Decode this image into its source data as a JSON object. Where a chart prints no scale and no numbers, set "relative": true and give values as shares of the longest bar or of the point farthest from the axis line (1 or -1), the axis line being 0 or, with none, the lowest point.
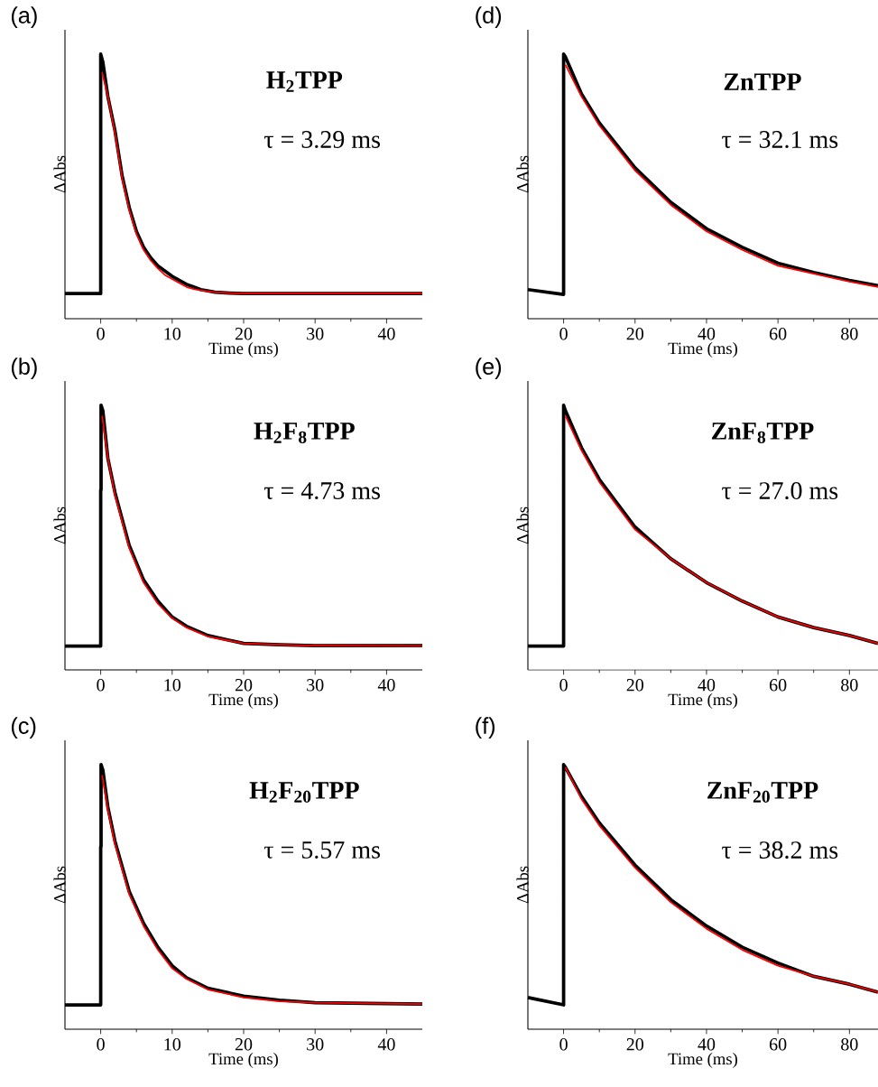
{
  "chart_data": [
    {
      "type": "line",
      "title": "(a)",
      "xlabel": "Time (ms)",
      "ylabel": "ΔAbs",
      "annotations": [
        "H$_{2}$TPP",
        "τ = 3.29 ms"
      ],
      "relative": true,
      "tick_labels": "x",
      "xlim": [
        -5,
        45
      ],
      "xticks": [
        0,
        10,
        20,
        30,
        40
      ],
      "series": [
        {
          "color": "#000000",
          "x": [
            -5,
            0,
            0,
            0.3,
            1,
            2,
            3,
            4,
            5,
            6,
            7,
            8,
            9,
            10,
            11,
            12,
            13,
            14,
            15,
            16,
            18,
            20,
            30,
            45
          ],
          "values": [
            0.095,
            0.095,
            1.0,
            0.97,
            0.84,
            0.71,
            0.54,
            0.42,
            0.33,
            0.27,
            0.23,
            0.2,
            0.18,
            0.16,
            0.145,
            0.13,
            0.12,
            0.11,
            0.105,
            0.1,
            0.097,
            0.095,
            0.095,
            0.095
          ]
        },
        {
          "color": "#ff0000",
          "x": [
            0.2,
            1,
            2,
            3,
            4,
            5,
            6,
            7,
            8,
            9,
            10,
            11,
            12,
            13,
            14,
            15,
            16,
            18,
            20,
            30,
            45
          ],
          "values": [
            0.93,
            0.84,
            0.7,
            0.53,
            0.41,
            0.32,
            0.26,
            0.22,
            0.19,
            0.165,
            0.15,
            0.135,
            0.12,
            0.112,
            0.107,
            0.104,
            0.1,
            0.097,
            0.095,
            0.095,
            0.095
          ]
        }
      ]
    },
    {
      "type": "line",
      "title": "(b)",
      "xlabel": "Time (ms)",
      "ylabel": "ΔAbs",
      "annotations": [
        "H$_{2}$F$_{8}$TPP",
        "τ = 4.73 ms"
      ],
      "relative": true,
      "tick_labels": "x",
      "xlim": [
        -5,
        45
      ],
      "xticks": [
        0,
        10,
        20,
        30,
        40
      ],
      "series": [
        {
          "color": "#000000",
          "x": [
            -5,
            0,
            0,
            0.05,
            0.05,
            0.3,
            1,
            2,
            4,
            6,
            8,
            10,
            12,
            15,
            20,
            25,
            30,
            45
          ],
          "values": [
            0.09,
            0.09,
            0.68,
            0.68,
            1.0,
            0.98,
            0.8,
            0.67,
            0.47,
            0.34,
            0.26,
            0.2,
            0.165,
            0.13,
            0.1,
            0.095,
            0.092,
            0.092
          ]
        },
        {
          "color": "#ff0000",
          "x": [
            0.2,
            1,
            2,
            4,
            6,
            8,
            10,
            12,
            15,
            20,
            25,
            30,
            45
          ],
          "values": [
            0.96,
            0.8,
            0.66,
            0.46,
            0.33,
            0.25,
            0.195,
            0.16,
            0.126,
            0.1,
            0.095,
            0.092,
            0.09
          ]
        }
      ]
    },
    {
      "type": "line",
      "title": "(c)",
      "xlabel": "Time (ms)",
      "ylabel": "ΔAbs",
      "annotations": [
        "H$_{2}$F$_{20}$TPP",
        "τ = 5.57 ms"
      ],
      "relative": true,
      "tick_labels": "x",
      "xlim": [
        -5,
        45
      ],
      "xticks": [
        0,
        10,
        20,
        30,
        40
      ],
      "series": [
        {
          "color": "#000000",
          "x": [
            -5,
            0,
            0,
            0.05,
            0.05,
            0.3,
            1,
            2,
            4,
            6,
            8,
            10,
            12,
            15,
            20,
            25,
            30,
            45
          ],
          "values": [
            0.092,
            0.092,
            0.69,
            0.69,
            1.0,
            0.98,
            0.84,
            0.71,
            0.52,
            0.4,
            0.31,
            0.24,
            0.195,
            0.155,
            0.125,
            0.11,
            0.1,
            0.095
          ]
        },
        {
          "color": "#ff0000",
          "x": [
            0.2,
            1,
            2,
            4,
            6,
            8,
            10,
            12,
            15,
            20,
            25,
            30,
            45
          ],
          "values": [
            0.96,
            0.83,
            0.7,
            0.51,
            0.39,
            0.3,
            0.23,
            0.19,
            0.15,
            0.12,
            0.105,
            0.1,
            0.095
          ]
        }
      ]
    },
    {
      "type": "line",
      "title": "(d)",
      "xlabel": "Time (ms)",
      "ylabel": "ΔAbs",
      "annotations": [
        "ZnTPP",
        "τ = 32.1 ms"
      ],
      "relative": true,
      "tick_labels": "x",
      "xlim": [
        -10,
        88
      ],
      "xticks": [
        0,
        20,
        40,
        60,
        80
      ],
      "series": [
        {
          "color": "#000000",
          "x": [
            -10,
            0,
            0,
            0.5,
            5,
            10,
            20,
            30,
            40,
            50,
            60,
            70,
            80,
            88
          ],
          "values": [
            0.11,
            0.092,
            1.0,
            0.99,
            0.85,
            0.74,
            0.57,
            0.44,
            0.34,
            0.27,
            0.21,
            0.175,
            0.145,
            0.125
          ]
        },
        {
          "color": "#ff0000",
          "x": [
            0.5,
            5,
            10,
            20,
            30,
            40,
            50,
            60,
            70,
            80,
            88
          ],
          "values": [
            0.96,
            0.84,
            0.73,
            0.56,
            0.43,
            0.33,
            0.26,
            0.2,
            0.17,
            0.14,
            0.12
          ]
        }
      ]
    },
    {
      "type": "line",
      "title": "(e)",
      "xlabel": "Time (ms)",
      "ylabel": "ΔAbs",
      "annotations": [
        "ZnF$_{8}$TPP",
        "τ = 27.0 ms"
      ],
      "relative": true,
      "tick_labels": "x",
      "xlim": [
        -10,
        88
      ],
      "xticks": [
        0,
        20,
        40,
        60,
        80
      ],
      "series": [
        {
          "color": "#000000",
          "x": [
            -10,
            0,
            0,
            0.5,
            5,
            10,
            20,
            30,
            40,
            50,
            60,
            70,
            80,
            88
          ],
          "values": [
            0.09,
            0.09,
            1.0,
            0.98,
            0.84,
            0.72,
            0.54,
            0.42,
            0.33,
            0.26,
            0.2,
            0.16,
            0.13,
            0.1
          ]
        },
        {
          "color": "#ff0000",
          "x": [
            0.5,
            5,
            10,
            20,
            30,
            40,
            50,
            60,
            70,
            80,
            88
          ],
          "values": [
            0.96,
            0.83,
            0.71,
            0.53,
            0.42,
            0.33,
            0.26,
            0.2,
            0.16,
            0.13,
            0.1
          ]
        }
      ]
    },
    {
      "type": "line",
      "title": "(f)",
      "xlabel": "Time (ms)",
      "ylabel": "ΔAbs",
      "annotations": [
        "ZnF$_{20}$TPP",
        "τ = 38.2 ms"
      ],
      "relative": true,
      "tick_labels": "x",
      "xlim": [
        -10,
        88
      ],
      "xticks": [
        0,
        20,
        40,
        60,
        80
      ],
      "series": [
        {
          "color": "#000000",
          "x": [
            -10,
            0,
            0,
            0.5,
            5,
            10,
            20,
            30,
            40,
            50,
            60,
            70,
            80,
            88
          ],
          "values": [
            0.12,
            0.092,
            1.0,
            0.99,
            0.88,
            0.78,
            0.62,
            0.49,
            0.39,
            0.31,
            0.25,
            0.2,
            0.17,
            0.14
          ]
        },
        {
          "color": "#ff0000",
          "x": [
            0.5,
            5,
            10,
            20,
            30,
            40,
            50,
            60,
            70,
            80,
            88
          ],
          "values": [
            0.99,
            0.87,
            0.77,
            0.61,
            0.48,
            0.38,
            0.3,
            0.24,
            0.2,
            0.17,
            0.14
          ]
        }
      ]
    }
  ]
}
